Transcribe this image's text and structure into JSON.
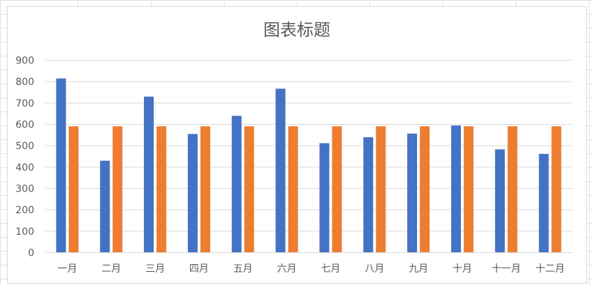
{
  "chart_data": {
    "type": "bar",
    "title": "图表标题",
    "xlabel": "",
    "ylabel": "",
    "categories": [
      "一月",
      "二月",
      "三月",
      "四月",
      "五月",
      "六月",
      "七月",
      "八月",
      "九月",
      "十月",
      "十一月",
      "十二月"
    ],
    "series": [
      {
        "values": [
          815,
          430,
          730,
          555,
          640,
          767,
          512,
          540,
          557,
          595,
          483,
          462
        ],
        "color": "#4472c4"
      },
      {
        "values": [
          591,
          591,
          591,
          591,
          591,
          591,
          591,
          591,
          591,
          591,
          591,
          591
        ],
        "color": "#ed7d31"
      }
    ],
    "ylim": [
      0,
      900
    ],
    "yticks": [
      "0",
      "100",
      "200",
      "300",
      "400",
      "500",
      "600",
      "700",
      "800",
      "900"
    ],
    "grid": true,
    "legend": "none"
  }
}
